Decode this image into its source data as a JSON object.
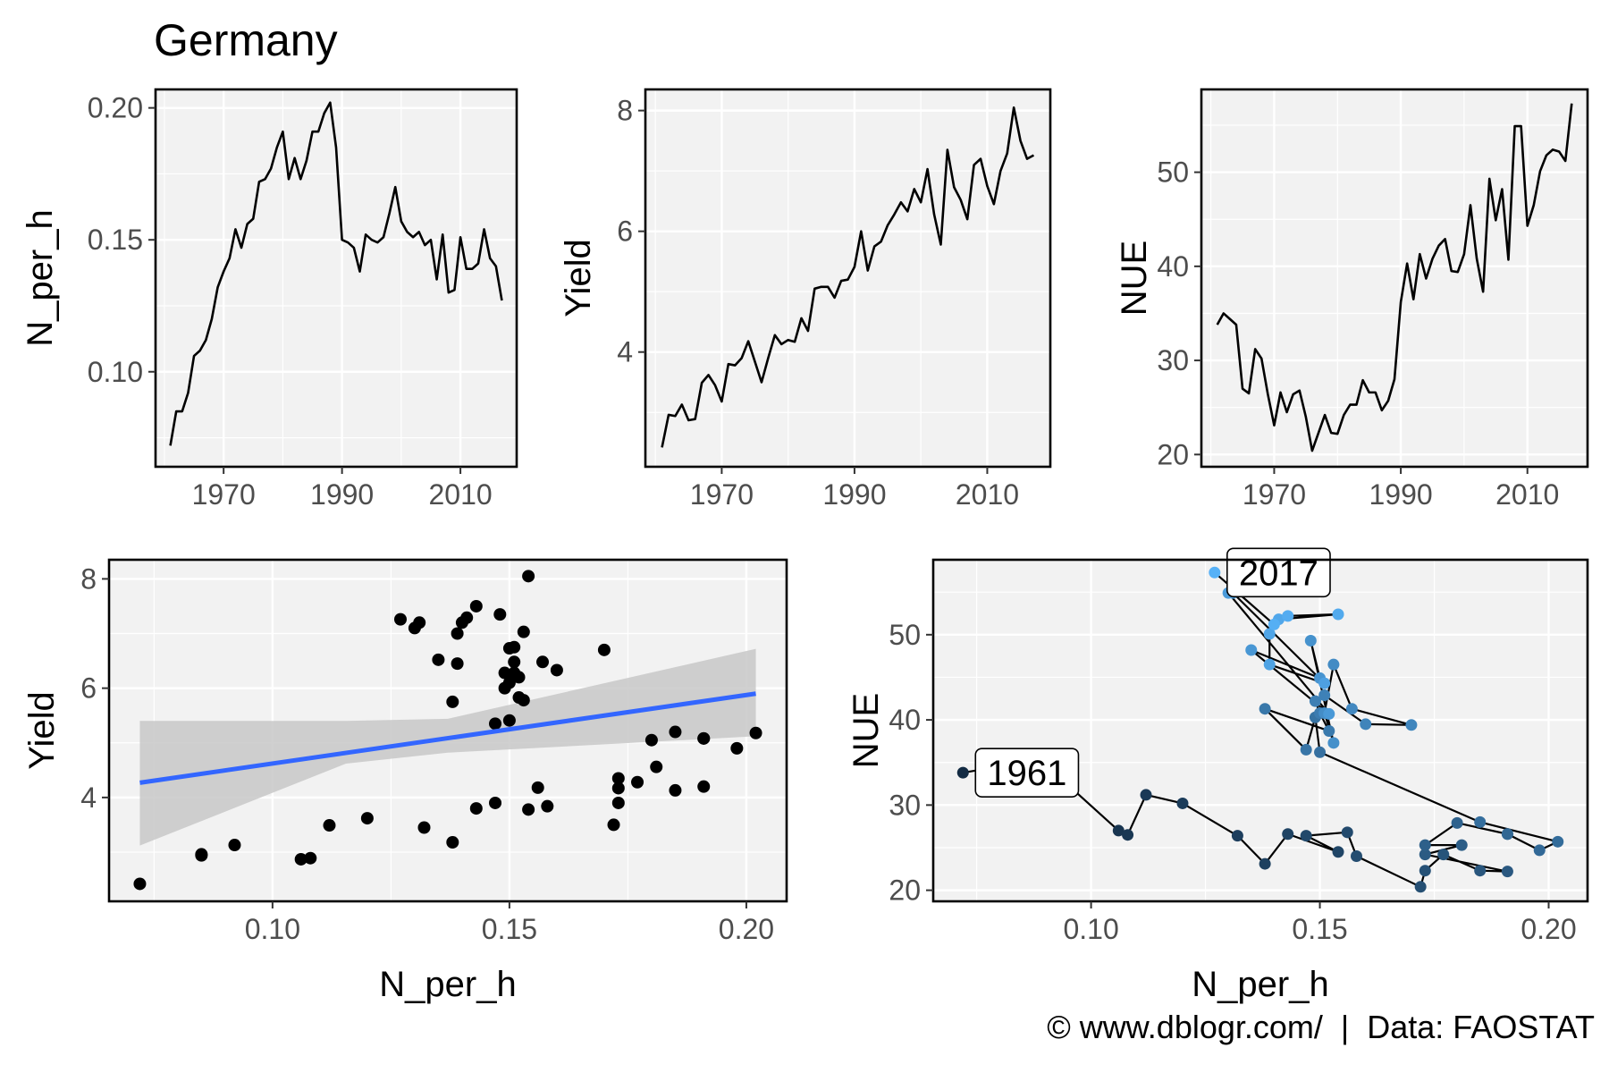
{
  "title": "Germany",
  "caption": "© www.dblogr.com/  |  Data: FAOSTAT",
  "colors": {
    "panel_bg": "#f2f2f2",
    "grid": "#ffffff",
    "line": "#000000",
    "fit": "#3366ff",
    "ribbon": "#c8c8c8",
    "point_dark": "#132b43",
    "point_light": "#56b1f7"
  },
  "chart_data": [
    {
      "type": "line",
      "xlabel": "",
      "ylabel": "N_per_h",
      "xlim": [
        1958.5,
        2019.5
      ],
      "ylim": [
        0.064,
        0.207
      ],
      "xticks": [
        1970,
        1990,
        2010
      ],
      "yticks": [
        0.1,
        0.15,
        0.2
      ],
      "ytick_labels": [
        "0.10",
        "0.15",
        "0.20"
      ],
      "x": [
        1961,
        1962,
        1963,
        1964,
        1965,
        1966,
        1967,
        1968,
        1969,
        1970,
        1971,
        1972,
        1973,
        1974,
        1975,
        1976,
        1977,
        1978,
        1979,
        1980,
        1981,
        1982,
        1983,
        1984,
        1985,
        1986,
        1987,
        1988,
        1989,
        1990,
        1991,
        1992,
        1993,
        1994,
        1995,
        1996,
        1997,
        1998,
        1999,
        2000,
        2001,
        2002,
        2003,
        2004,
        2005,
        2006,
        2007,
        2008,
        2009,
        2010,
        2011,
        2012,
        2013,
        2014,
        2015,
        2016,
        2017
      ],
      "y": [
        0.072,
        0.085,
        0.085,
        0.092,
        0.106,
        0.108,
        0.112,
        0.12,
        0.132,
        0.138,
        0.143,
        0.154,
        0.147,
        0.156,
        0.158,
        0.172,
        0.173,
        0.177,
        0.185,
        0.191,
        0.173,
        0.181,
        0.173,
        0.18,
        0.191,
        0.191,
        0.198,
        0.202,
        0.185,
        0.15,
        0.149,
        0.147,
        0.138,
        0.152,
        0.15,
        0.149,
        0.151,
        0.16,
        0.17,
        0.157,
        0.153,
        0.151,
        0.153,
        0.148,
        0.15,
        0.135,
        0.152,
        0.13,
        0.131,
        0.151,
        0.139,
        0.139,
        0.141,
        0.154,
        0.143,
        0.14,
        0.127
      ]
    },
    {
      "type": "line",
      "xlabel": "",
      "ylabel": "Yield",
      "xlim": [
        1958.5,
        2019.5
      ],
      "ylim": [
        2.1,
        8.35
      ],
      "xticks": [
        1970,
        1990,
        2010
      ],
      "yticks": [
        4,
        6,
        8
      ],
      "ytick_labels": [
        "4",
        "6",
        "8"
      ],
      "x": [
        1961,
        1962,
        1963,
        1964,
        1965,
        1966,
        1967,
        1968,
        1969,
        1970,
        1971,
        1972,
        1973,
        1974,
        1975,
        1976,
        1977,
        1978,
        1979,
        1980,
        1981,
        1982,
        1983,
        1984,
        1985,
        1986,
        1987,
        1988,
        1989,
        1990,
        1991,
        1992,
        1993,
        1994,
        1995,
        1996,
        1997,
        1998,
        1999,
        2000,
        2001,
        2002,
        2003,
        2004,
        2005,
        2006,
        2007,
        2008,
        2009,
        2010,
        2011,
        2012,
        2013,
        2014,
        2015,
        2016,
        2017
      ],
      "y": [
        2.42,
        2.96,
        2.94,
        3.13,
        2.87,
        2.89,
        3.49,
        3.62,
        3.45,
        3.18,
        3.8,
        3.78,
        3.9,
        4.18,
        3.84,
        3.5,
        3.9,
        4.28,
        4.13,
        4.2,
        4.17,
        4.56,
        4.35,
        5.05,
        5.08,
        5.08,
        4.9,
        5.18,
        5.2,
        5.41,
        6.0,
        5.35,
        5.75,
        5.83,
        6.1,
        6.28,
        6.48,
        6.33,
        6.7,
        6.48,
        7.03,
        6.28,
        5.78,
        7.35,
        6.73,
        6.52,
        6.2,
        7.1,
        7.2,
        6.75,
        6.45,
        7.0,
        7.29,
        8.05,
        7.5,
        7.2,
        7.26
      ]
    },
    {
      "type": "line",
      "xlabel": "",
      "ylabel": "NUE",
      "xlim": [
        1958.5,
        2019.5
      ],
      "ylim": [
        18.7,
        58.8
      ],
      "xticks": [
        1970,
        1990,
        2010
      ],
      "yticks": [
        20,
        30,
        40,
        50
      ],
      "ytick_labels": [
        "20",
        "30",
        "40",
        "50"
      ],
      "x": [
        1961,
        1962,
        1963,
        1964,
        1965,
        1966,
        1967,
        1968,
        1969,
        1970,
        1971,
        1972,
        1973,
        1974,
        1975,
        1976,
        1977,
        1978,
        1979,
        1980,
        1981,
        1982,
        1983,
        1984,
        1985,
        1986,
        1987,
        1988,
        1989,
        1990,
        1991,
        1992,
        1993,
        1994,
        1995,
        1996,
        1997,
        1998,
        1999,
        2000,
        2001,
        2002,
        2003,
        2004,
        2005,
        2006,
        2007,
        2008,
        2009,
        2010,
        2011,
        2012,
        2013,
        2014,
        2015,
        2016,
        2017
      ],
      "y": [
        33.8,
        35.0,
        34.4,
        33.8,
        27.0,
        26.5,
        31.2,
        30.2,
        26.4,
        23.1,
        26.6,
        24.5,
        26.4,
        26.8,
        24.0,
        20.4,
        22.3,
        24.2,
        22.3,
        22.2,
        24.2,
        25.3,
        25.3,
        27.9,
        26.6,
        26.6,
        24.7,
        25.7,
        28.0,
        36.2,
        40.3,
        36.5,
        41.3,
        38.7,
        40.8,
        42.2,
        42.9,
        39.5,
        39.4,
        41.3,
        46.5,
        40.8,
        37.3,
        49.3,
        44.9,
        48.2,
        40.7,
        54.9,
        54.9,
        44.3,
        46.5,
        50.1,
        51.8,
        52.4,
        52.2,
        51.2,
        57.3
      ]
    },
    {
      "type": "scatter",
      "xlabel": "N_per_h",
      "ylabel": "Yield",
      "xlim": [
        0.0655,
        0.2085
      ],
      "ylim": [
        2.1,
        8.35
      ],
      "xticks": [
        0.1,
        0.15,
        0.2
      ],
      "yticks": [
        4,
        6,
        8
      ],
      "xtick_labels": [
        "0.10",
        "0.15",
        "0.20"
      ],
      "ytick_labels": [
        "4",
        "6",
        "8"
      ],
      "points": [
        [
          0.072,
          2.42
        ],
        [
          0.085,
          2.96
        ],
        [
          0.085,
          2.94
        ],
        [
          0.092,
          3.13
        ],
        [
          0.106,
          2.87
        ],
        [
          0.108,
          2.89
        ],
        [
          0.112,
          3.49
        ],
        [
          0.12,
          3.62
        ],
        [
          0.132,
          3.45
        ],
        [
          0.138,
          3.18
        ],
        [
          0.143,
          3.8
        ],
        [
          0.154,
          3.78
        ],
        [
          0.147,
          3.9
        ],
        [
          0.156,
          4.18
        ],
        [
          0.158,
          3.84
        ],
        [
          0.172,
          3.5
        ],
        [
          0.173,
          3.9
        ],
        [
          0.177,
          4.28
        ],
        [
          0.185,
          4.13
        ],
        [
          0.191,
          4.2
        ],
        [
          0.173,
          4.17
        ],
        [
          0.181,
          4.56
        ],
        [
          0.173,
          4.35
        ],
        [
          0.18,
          5.05
        ],
        [
          0.191,
          5.08
        ],
        [
          0.191,
          5.08
        ],
        [
          0.198,
          4.9
        ],
        [
          0.202,
          5.18
        ],
        [
          0.185,
          5.2
        ],
        [
          0.15,
          5.41
        ],
        [
          0.149,
          6.0
        ],
        [
          0.147,
          5.35
        ],
        [
          0.138,
          5.75
        ],
        [
          0.152,
          5.83
        ],
        [
          0.15,
          6.1
        ],
        [
          0.149,
          6.28
        ],
        [
          0.151,
          6.48
        ],
        [
          0.16,
          6.33
        ],
        [
          0.17,
          6.7
        ],
        [
          0.157,
          6.48
        ],
        [
          0.153,
          7.03
        ],
        [
          0.151,
          6.28
        ],
        [
          0.153,
          5.78
        ],
        [
          0.148,
          7.35
        ],
        [
          0.15,
          6.73
        ],
        [
          0.135,
          6.52
        ],
        [
          0.152,
          6.2
        ],
        [
          0.13,
          7.1
        ],
        [
          0.131,
          7.2
        ],
        [
          0.151,
          6.75
        ],
        [
          0.139,
          6.45
        ],
        [
          0.139,
          7.0
        ],
        [
          0.141,
          7.29
        ],
        [
          0.154,
          8.05
        ],
        [
          0.143,
          7.5
        ],
        [
          0.14,
          7.2
        ],
        [
          0.127,
          7.26
        ]
      ],
      "fit": {
        "x": [
          0.072,
          0.202
        ],
        "y": [
          4.27,
          5.9
        ]
      },
      "ribbon": {
        "x": [
          0.072,
          0.1155,
          0.137,
          0.202
        ],
        "upper": [
          5.4,
          5.4,
          5.44,
          6.72
        ],
        "lower": [
          3.12,
          4.62,
          4.82,
          5.12
        ]
      }
    },
    {
      "type": "scatter",
      "xlabel": "N_per_h",
      "ylabel": "NUE",
      "xlim": [
        0.0655,
        0.2085
      ],
      "ylim": [
        18.7,
        58.8
      ],
      "xticks": [
        0.1,
        0.15,
        0.2
      ],
      "yticks": [
        20,
        30,
        40,
        50
      ],
      "xtick_labels": [
        "0.10",
        "0.15",
        "0.20"
      ],
      "ytick_labels": [
        "20",
        "30",
        "40",
        "50"
      ],
      "points": [
        [
          0.072,
          33.8
        ],
        [
          0.085,
          35.0
        ],
        [
          0.085,
          34.4
        ],
        [
          0.092,
          33.8
        ],
        [
          0.106,
          27.0
        ],
        [
          0.108,
          26.5
        ],
        [
          0.112,
          31.2
        ],
        [
          0.12,
          30.2
        ],
        [
          0.132,
          26.4
        ],
        [
          0.138,
          23.1
        ],
        [
          0.143,
          26.6
        ],
        [
          0.154,
          24.5
        ],
        [
          0.147,
          26.4
        ],
        [
          0.156,
          26.8
        ],
        [
          0.158,
          24.0
        ],
        [
          0.172,
          20.4
        ],
        [
          0.173,
          22.3
        ],
        [
          0.177,
          24.2
        ],
        [
          0.185,
          22.3
        ],
        [
          0.191,
          22.2
        ],
        [
          0.173,
          24.2
        ],
        [
          0.181,
          25.3
        ],
        [
          0.173,
          25.3
        ],
        [
          0.18,
          27.9
        ],
        [
          0.191,
          26.6
        ],
        [
          0.191,
          26.6
        ],
        [
          0.198,
          24.7
        ],
        [
          0.202,
          25.7
        ],
        [
          0.185,
          28.0
        ],
        [
          0.15,
          36.2
        ],
        [
          0.149,
          40.3
        ],
        [
          0.147,
          36.5
        ],
        [
          0.138,
          41.3
        ],
        [
          0.152,
          38.7
        ],
        [
          0.15,
          40.8
        ],
        [
          0.149,
          42.2
        ],
        [
          0.151,
          42.9
        ],
        [
          0.16,
          39.5
        ],
        [
          0.17,
          39.4
        ],
        [
          0.157,
          41.3
        ],
        [
          0.153,
          46.5
        ],
        [
          0.151,
          40.8
        ],
        [
          0.153,
          37.3
        ],
        [
          0.148,
          49.3
        ],
        [
          0.15,
          44.9
        ],
        [
          0.135,
          48.2
        ],
        [
          0.152,
          40.7
        ],
        [
          0.13,
          54.9
        ],
        [
          0.131,
          54.9
        ],
        [
          0.151,
          44.3
        ],
        [
          0.139,
          46.5
        ],
        [
          0.139,
          50.1
        ],
        [
          0.141,
          51.8
        ],
        [
          0.154,
          52.4
        ],
        [
          0.143,
          52.2
        ],
        [
          0.14,
          51.2
        ],
        [
          0.127,
          57.3
        ]
      ],
      "annotations": [
        {
          "text": "1961",
          "x": 0.072,
          "y": 33.8
        },
        {
          "text": "2017",
          "x": 0.127,
          "y": 57.3
        }
      ]
    }
  ]
}
